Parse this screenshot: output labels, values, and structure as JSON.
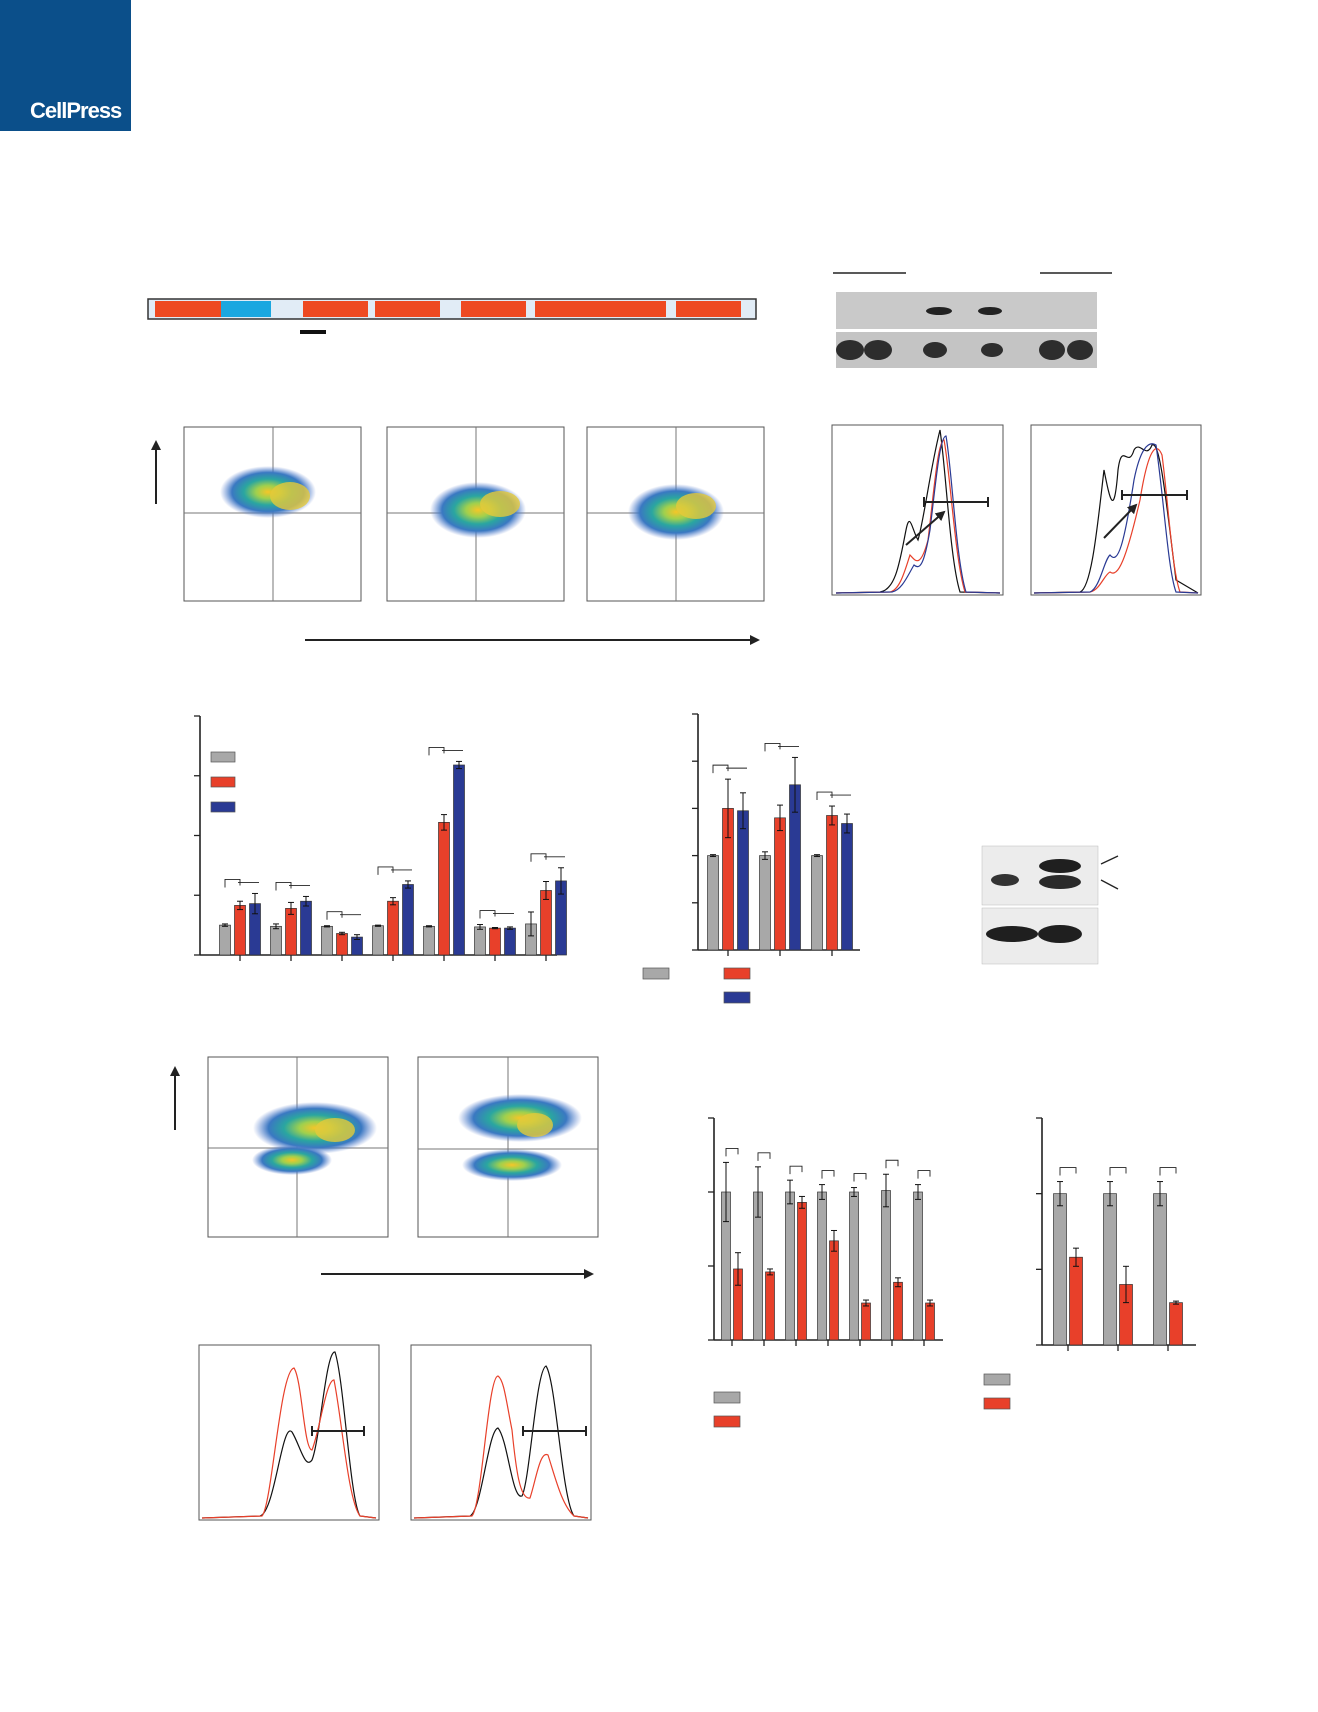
{
  "header": {
    "publisher_logo": "CellPress",
    "brand_color": "#0b4f8a"
  },
  "colors": {
    "gray": "#a8a8a8",
    "red": "#e8402a",
    "blue": "#2a3a94",
    "orange_line": "#ef5a2a"
  },
  "chart_data": [
    {
      "type": "bar",
      "id": "panel-bars-left",
      "ylim": [
        0,
        4
      ],
      "categories": [
        "",
        "",
        "",
        "",
        "",
        "",
        ""
      ],
      "series": [
        {
          "color": "gray",
          "values": [
            0.5,
            0.48,
            0.48,
            0.49,
            0.48,
            0.47,
            0.52
          ],
          "errors": [
            0.02,
            0.04,
            0.01,
            0.01,
            0.01,
            0.04,
            0.2
          ]
        },
        {
          "color": "red",
          "values": [
            0.83,
            0.78,
            0.36,
            0.9,
            2.22,
            0.45,
            1.08
          ],
          "errors": [
            0.07,
            0.1,
            0.02,
            0.06,
            0.13,
            0.01,
            0.15
          ]
        },
        {
          "color": "blue",
          "values": [
            0.86,
            0.9,
            0.3,
            1.18,
            3.18,
            0.45,
            1.24
          ],
          "errors": [
            0.17,
            0.08,
            0.04,
            0.06,
            0.06,
            0.02,
            0.22
          ]
        }
      ]
    },
    {
      "type": "bar",
      "id": "panel-bars-mid",
      "ylim": [
        0,
        5
      ],
      "categories": [
        "",
        "",
        ""
      ],
      "series": [
        {
          "color": "gray",
          "values": [
            2.0,
            2.0,
            2.0
          ],
          "errors": [
            0.02,
            0.08,
            0.02
          ]
        },
        {
          "color": "red",
          "values": [
            3.0,
            2.8,
            2.85
          ],
          "errors": [
            0.62,
            0.27,
            0.2
          ]
        },
        {
          "color": "blue",
          "values": [
            2.95,
            3.5,
            2.68
          ],
          "errors": [
            0.38,
            0.58,
            0.2
          ]
        }
      ]
    },
    {
      "type": "bar",
      "id": "panel-bars-bottom-left",
      "ylim": [
        0,
        1.5
      ],
      "categories": [
        "",
        "",
        "",
        "",
        "",
        "",
        ""
      ],
      "series": [
        {
          "color": "gray",
          "values": [
            1.0,
            1.0,
            1.0,
            1.0,
            1.0,
            1.01,
            1.0
          ],
          "errors": [
            0.2,
            0.17,
            0.08,
            0.05,
            0.03,
            0.11,
            0.05
          ]
        },
        {
          "color": "red",
          "values": [
            0.48,
            0.46,
            0.93,
            0.67,
            0.25,
            0.39,
            0.25
          ],
          "errors": [
            0.11,
            0.02,
            0.04,
            0.07,
            0.02,
            0.03,
            0.02
          ]
        }
      ]
    },
    {
      "type": "bar",
      "id": "panel-bars-bottom-right",
      "ylim": [
        0,
        1.5
      ],
      "categories": [
        "",
        "",
        ""
      ],
      "series": [
        {
          "color": "gray",
          "values": [
            1.0,
            1.0,
            1.0
          ],
          "errors": [
            0.08,
            0.08,
            0.08
          ]
        },
        {
          "color": "red",
          "values": [
            0.58,
            0.4,
            0.28
          ],
          "errors": [
            0.06,
            0.12,
            0.01
          ]
        }
      ]
    }
  ]
}
